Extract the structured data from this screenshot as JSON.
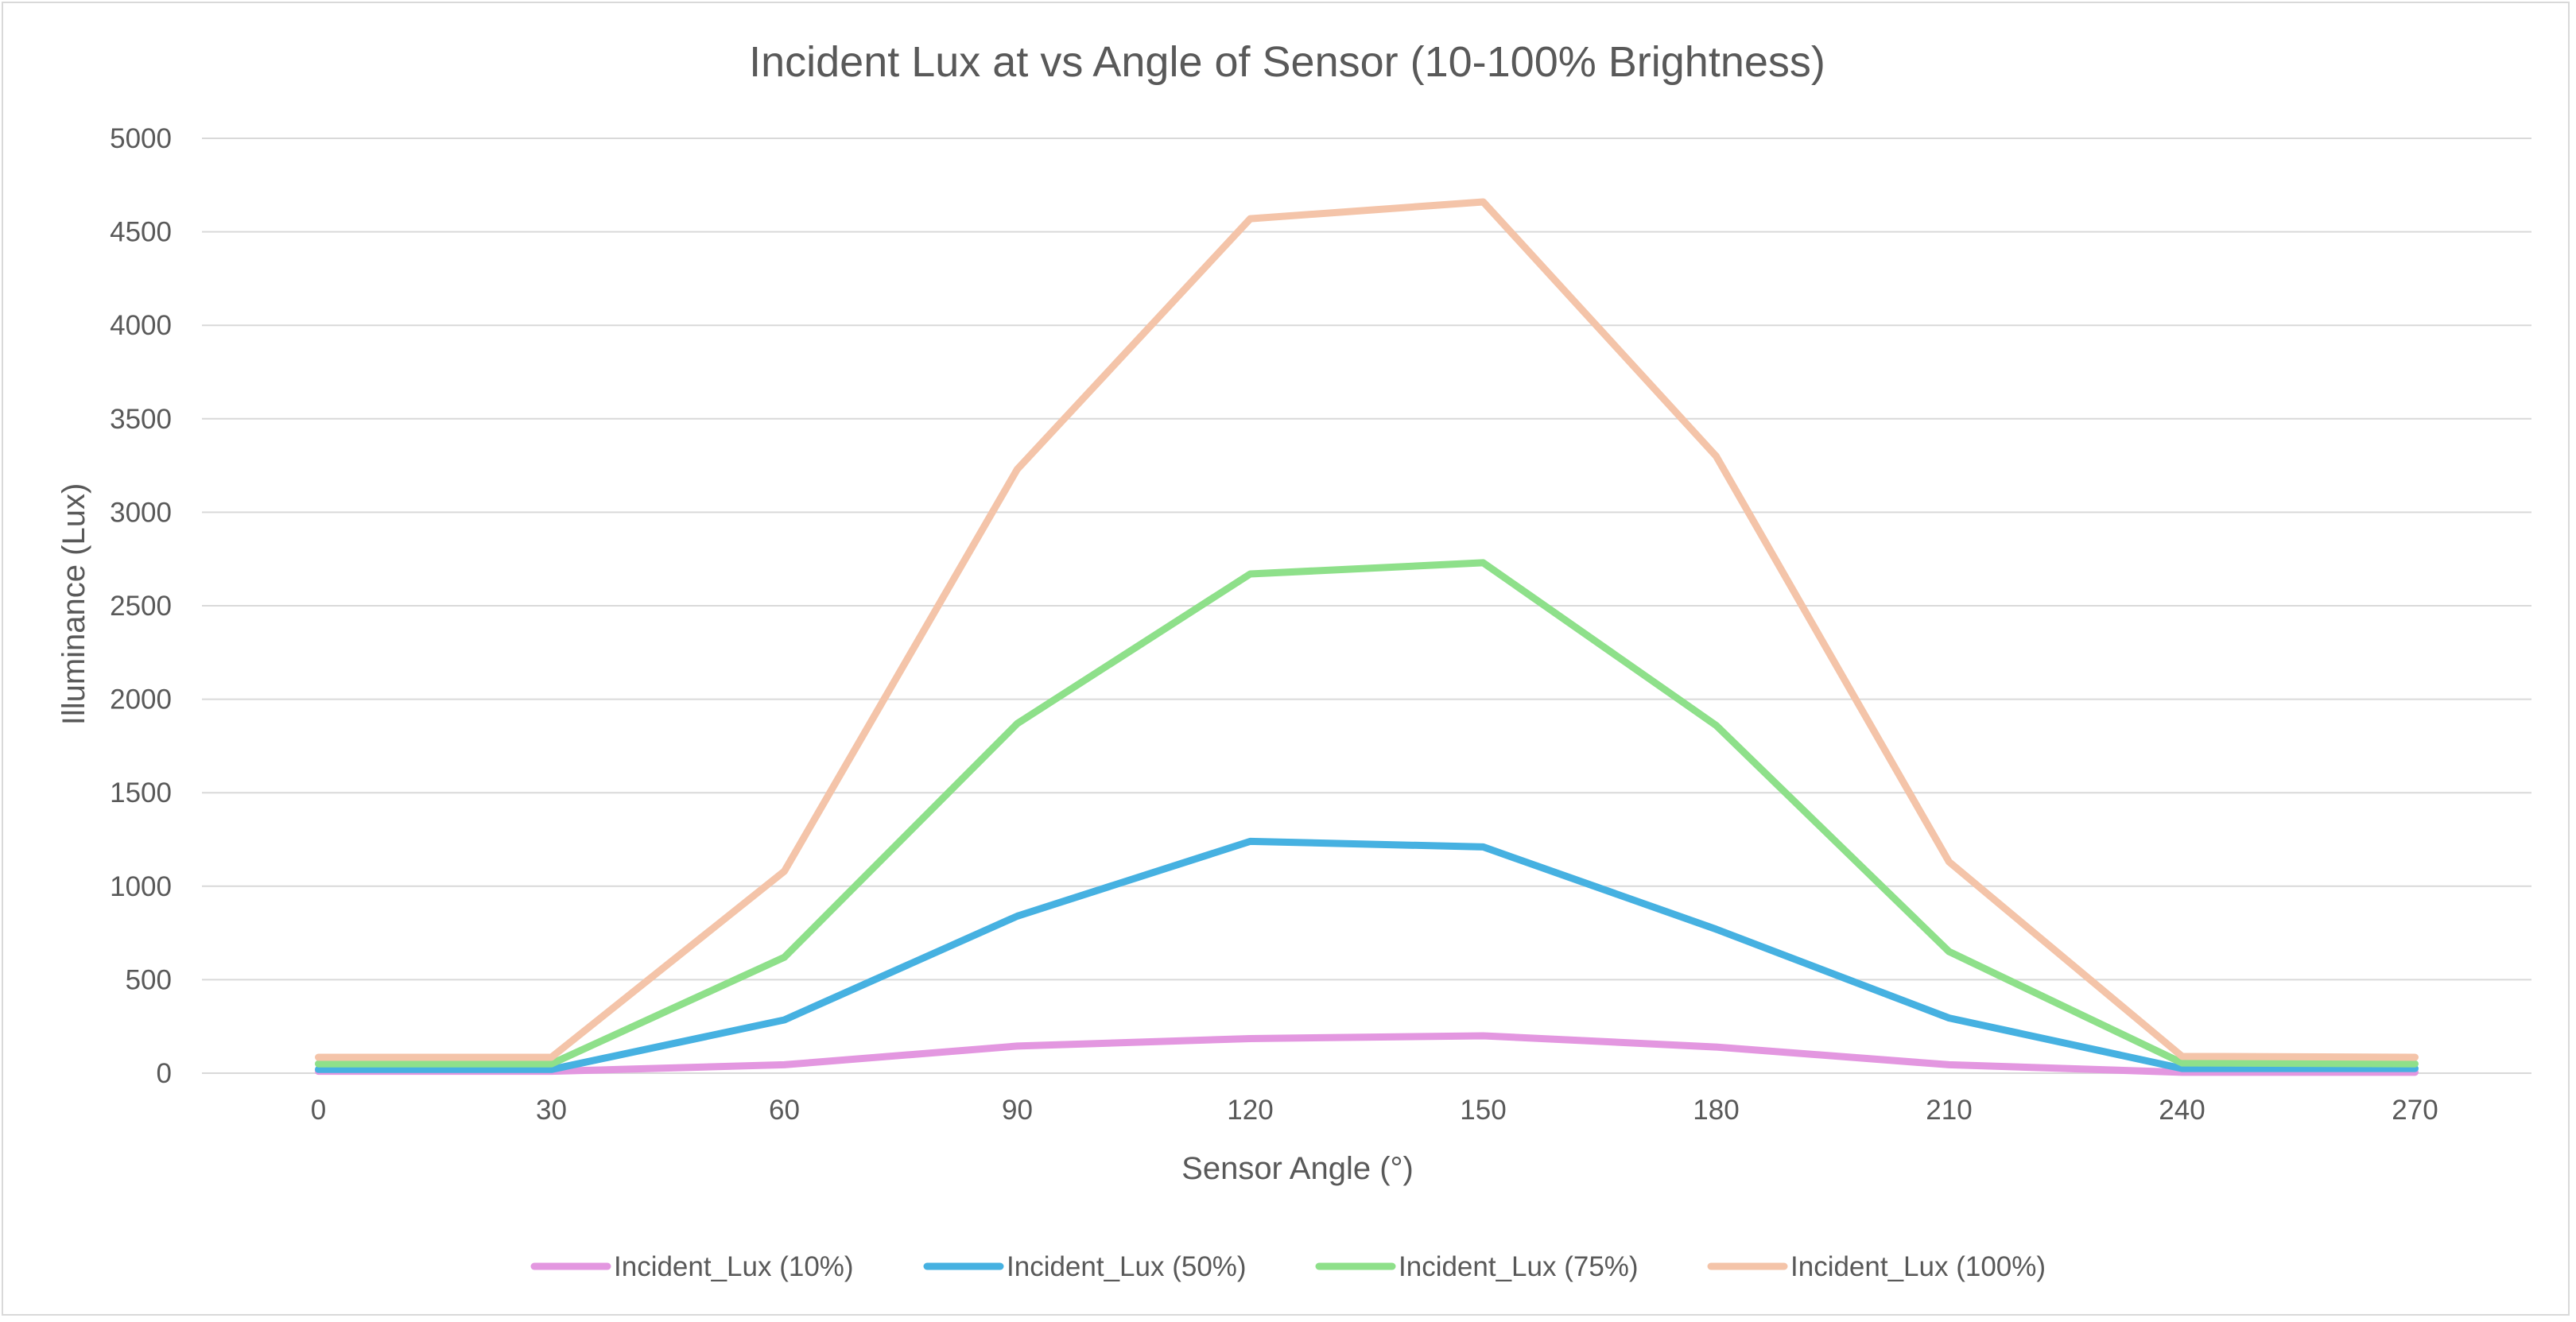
{
  "chart_data": {
    "type": "line",
    "title": "Incident Lux  at vs Angle of Sensor (10-100% Brightness)",
    "xlabel": "Sensor Angle (°)",
    "ylabel": "Illuminance (Lux)",
    "categories": [
      "0",
      "30",
      "60",
      "90",
      "120",
      "150",
      "180",
      "210",
      "240",
      "270"
    ],
    "ylim": [
      0,
      5000
    ],
    "yticks": [
      0,
      500,
      1000,
      1500,
      2000,
      2500,
      3000,
      3500,
      4000,
      4500,
      5000
    ],
    "grid": true,
    "legend_position": "bottom",
    "series": [
      {
        "name": "Incident_Lux (10%)",
        "color": "#e397e0",
        "values": [
          10,
          10,
          45,
          145,
          185,
          200,
          140,
          45,
          5,
          5
        ]
      },
      {
        "name": "Incident_Lux (50%)",
        "color": "#46b1e1",
        "values": [
          20,
          20,
          285,
          840,
          1240,
          1210,
          770,
          295,
          25,
          25
        ]
      },
      {
        "name": "Incident_Lux (75%)",
        "color": "#8ee08a",
        "values": [
          50,
          50,
          620,
          1870,
          2670,
          2730,
          1860,
          650,
          55,
          50
        ]
      },
      {
        "name": "Incident_Lux (100%)",
        "color": "#f4c4a9",
        "values": [
          85,
          85,
          1080,
          3230,
          4570,
          4660,
          3300,
          1130,
          90,
          85
        ]
      }
    ]
  }
}
